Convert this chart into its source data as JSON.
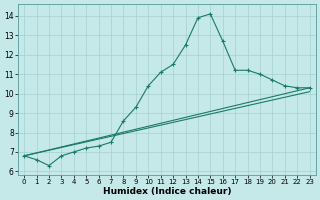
{
  "xlabel": "Humidex (Indice chaleur)",
  "xlim": [
    -0.5,
    23.5
  ],
  "ylim": [
    5.8,
    14.6
  ],
  "background_color": "#c5e8e8",
  "grid_color": "#a8d0d0",
  "line_color": "#1a7a6a",
  "xticks": [
    0,
    1,
    2,
    3,
    4,
    5,
    6,
    7,
    8,
    9,
    10,
    11,
    12,
    13,
    14,
    15,
    16,
    17,
    18,
    19,
    20,
    21,
    22,
    23
  ],
  "yticks": [
    6,
    7,
    8,
    9,
    10,
    11,
    12,
    13,
    14
  ],
  "line1_x": [
    0,
    1,
    2,
    3,
    4,
    5,
    6,
    7,
    8,
    9,
    10,
    11,
    12,
    13,
    14,
    15,
    16,
    17,
    18,
    19,
    20,
    21,
    22,
    23
  ],
  "line1_y": [
    6.8,
    6.6,
    6.3,
    6.8,
    7.0,
    7.2,
    7.3,
    7.5,
    8.6,
    9.3,
    10.4,
    11.1,
    11.5,
    12.5,
    13.9,
    14.1,
    12.7,
    11.2,
    11.2,
    11.0,
    10.7,
    10.4,
    10.3,
    10.3
  ],
  "line2_x": [
    0,
    23
  ],
  "line2_y": [
    6.8,
    10.3
  ],
  "line3_x": [
    0,
    23
  ],
  "line3_y": [
    6.8,
    10.1
  ]
}
